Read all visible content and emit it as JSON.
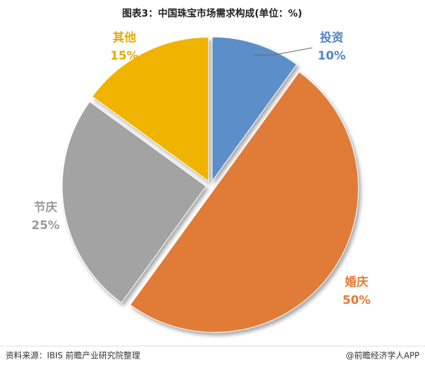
{
  "chart_data": {
    "type": "pie",
    "title": "图表3：中国珠宝市场需求构成(单位：%)",
    "categories": [
      "投资",
      "婚庆",
      "节庆",
      "其他"
    ],
    "values": [
      10,
      50,
      25,
      15
    ],
    "value_labels": [
      "10%",
      "50%",
      "25%",
      "15%"
    ],
    "colors": [
      "#5b8fc9",
      "#e07b39",
      "#a3a3a3",
      "#f0b400"
    ],
    "label_colors": [
      "#4f86c6",
      "#e07b39",
      "#9a9a9a",
      "#e8a800"
    ],
    "source": "资料来源：IBIS 前瞻产业研究院整理",
    "credit": "@前瞻经济学人APP"
  }
}
